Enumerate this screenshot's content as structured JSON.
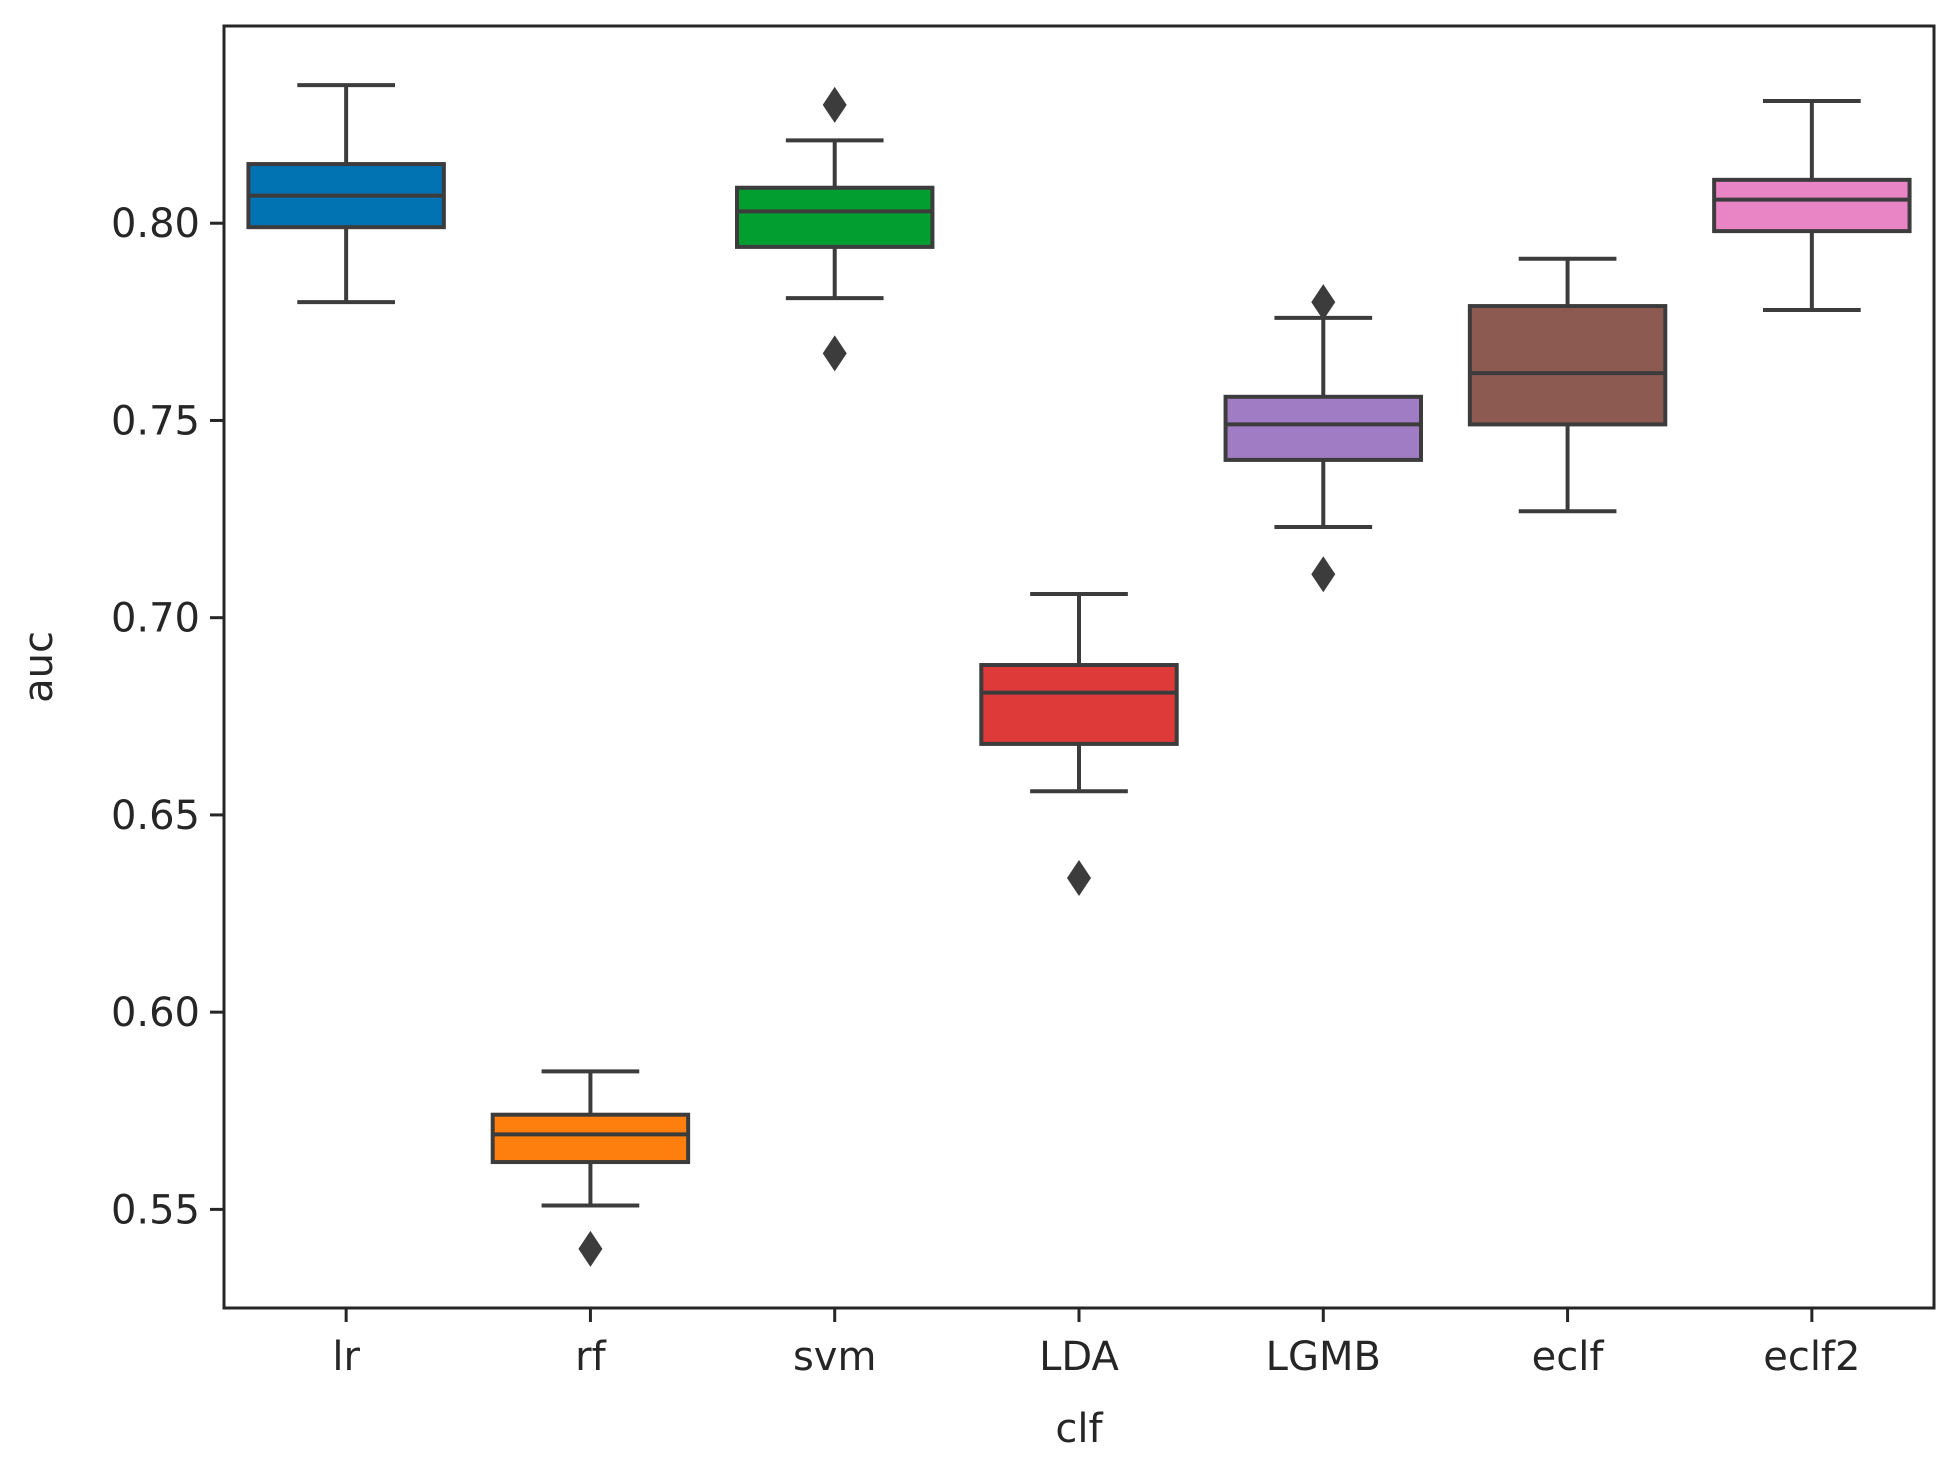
{
  "chart_data": {
    "type": "box",
    "title": "",
    "xlabel": "clf",
    "ylabel": "auc",
    "ylim": [
      0.525,
      0.85
    ],
    "yticks": [
      0.55,
      0.6,
      0.65,
      0.7,
      0.75,
      0.8
    ],
    "ytick_labels": [
      "0.55",
      "0.60",
      "0.65",
      "0.70",
      "0.75",
      "0.80"
    ],
    "grid": false,
    "categories": [
      "lr",
      "rf",
      "svm",
      "LDA",
      "LGMB",
      "eclf",
      "eclf2"
    ],
    "boxes": [
      {
        "name": "lr",
        "whisker_low": 0.78,
        "q1": 0.799,
        "median": 0.807,
        "q3": 0.815,
        "whisker_high": 0.835,
        "outliers": [],
        "color": "#0173b2"
      },
      {
        "name": "rf",
        "whisker_low": 0.551,
        "q1": 0.562,
        "median": 0.569,
        "q3": 0.574,
        "whisker_high": 0.585,
        "outliers": [
          0.54
        ],
        "color": "#ff7f0e"
      },
      {
        "name": "svm",
        "whisker_low": 0.781,
        "q1": 0.794,
        "median": 0.803,
        "q3": 0.809,
        "whisker_high": 0.821,
        "outliers": [
          0.83,
          0.767
        ],
        "color": "#029e2f"
      },
      {
        "name": "LDA",
        "whisker_low": 0.656,
        "q1": 0.668,
        "median": 0.681,
        "q3": 0.688,
        "whisker_high": 0.706,
        "outliers": [
          0.634
        ],
        "color": "#de3a3a"
      },
      {
        "name": "LGMB",
        "whisker_low": 0.723,
        "q1": 0.74,
        "median": 0.749,
        "q3": 0.756,
        "whisker_high": 0.776,
        "outliers": [
          0.78,
          0.711
        ],
        "color": "#a07cc4"
      },
      {
        "name": "eclf",
        "whisker_low": 0.727,
        "q1": 0.749,
        "median": 0.762,
        "q3": 0.779,
        "whisker_high": 0.791,
        "outliers": [],
        "color": "#8c5a50"
      },
      {
        "name": "eclf2",
        "whisker_low": 0.778,
        "q1": 0.798,
        "median": 0.806,
        "q3": 0.811,
        "whisker_high": 0.831,
        "outliers": [],
        "color": "#ea85c5"
      }
    ]
  }
}
